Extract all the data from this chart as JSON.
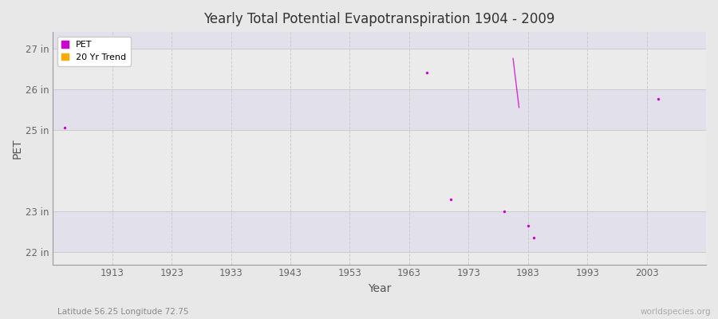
{
  "title": "Yearly Total Potential Evapotranspiration 1904 - 2009",
  "xlabel": "Year",
  "ylabel": "PET",
  "fig_bg_color": "#e8e8e8",
  "plot_bg_color": "#f0eef5",
  "band_color": "#e8e6ee",
  "grid_color_h": "#d8d8d8",
  "grid_color_v": "#d0d0d0",
  "pet_color": "#cc00cc",
  "trend_color": "#ffaa00",
  "subtitle_left": "Latitude 56.25 Longitude 72.75",
  "subtitle_right": "worldspecies.org",
  "ytick_labels": [
    "22 in",
    "23 in",
    "25 in",
    "26 in",
    "27 in"
  ],
  "ytick_values": [
    22,
    23,
    25,
    26,
    27
  ],
  "ylim": [
    21.7,
    27.4
  ],
  "xtick_values": [
    1913,
    1923,
    1933,
    1943,
    1953,
    1963,
    1973,
    1983,
    1993,
    2003
  ],
  "xlim": [
    1903,
    2013
  ],
  "pet_years": [
    1905,
    1966,
    1970,
    1979,
    1983,
    1984,
    2005
  ],
  "pet_values": [
    25.05,
    26.4,
    23.3,
    23.0,
    22.65,
    22.35,
    25.75
  ],
  "trend_x": [
    1980.5,
    1981.5
  ],
  "trend_y": [
    26.75,
    25.55
  ]
}
